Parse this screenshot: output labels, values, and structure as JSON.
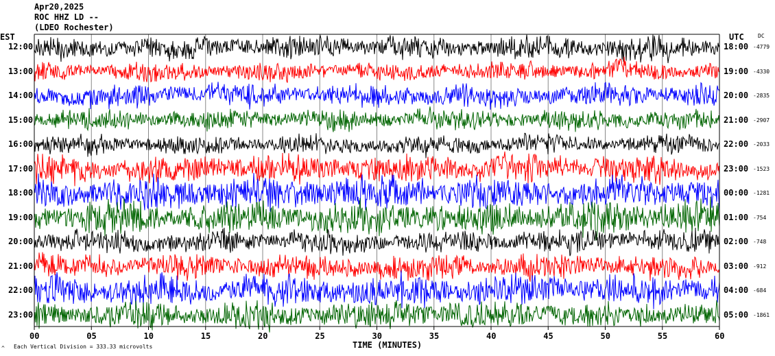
{
  "header": {
    "date": "Apr20,2025",
    "station": "ROC HHZ LD --",
    "network": "(LDEO Rochester)"
  },
  "left_axis_label": "EST",
  "right_axis_label": "UTC",
  "dc_label": "DC",
  "footer_note": "Each Vertical Division = 333.33 microvolts",
  "footer_mark": "^",
  "chart_data": {
    "type": "line",
    "subtype": "helicorder seismogram",
    "xlabel": "TIME (MINUTES)",
    "xlim": [
      0,
      60
    ],
    "x_ticks": [
      "00",
      "05",
      "10",
      "15",
      "20",
      "25",
      "30",
      "35",
      "40",
      "45",
      "50",
      "55",
      "60"
    ],
    "rows": [
      {
        "est": "12:00",
        "utc": "18:00",
        "dc": "-4779",
        "color": "#000000",
        "amplitude": 0.55
      },
      {
        "est": "13:00",
        "utc": "19:00",
        "dc": "-4330",
        "color": "#ff0000",
        "amplitude": 0.45
      },
      {
        "est": "14:00",
        "utc": "20:00",
        "dc": "-2835",
        "color": "#0000ff",
        "amplitude": 0.55
      },
      {
        "est": "15:00",
        "utc": "21:00",
        "dc": "-2907",
        "color": "#006400",
        "amplitude": 0.5
      },
      {
        "est": "16:00",
        "utc": "22:00",
        "dc": "-2033",
        "color": "#000000",
        "amplitude": 0.45
      },
      {
        "est": "17:00",
        "utc": "23:00",
        "dc": "-1523",
        "color": "#ff0000",
        "amplitude": 0.7
      },
      {
        "est": "18:00",
        "utc": "00:00",
        "dc": "-1281",
        "color": "#0000ff",
        "amplitude": 0.8
      },
      {
        "est": "19:00",
        "utc": "01:00",
        "dc": "-754",
        "color": "#006400",
        "amplitude": 0.8
      },
      {
        "est": "20:00",
        "utc": "02:00",
        "dc": "-748",
        "color": "#000000",
        "amplitude": 0.55
      },
      {
        "est": "21:00",
        "utc": "03:00",
        "dc": "-912",
        "color": "#ff0000",
        "amplitude": 0.6
      },
      {
        "est": "22:00",
        "utc": "04:00",
        "dc": "-684",
        "color": "#0000ff",
        "amplitude": 0.75
      },
      {
        "est": "23:00",
        "utc": "05:00",
        "dc": "-1861",
        "color": "#006400",
        "amplitude": 0.65
      }
    ],
    "grid": true
  }
}
